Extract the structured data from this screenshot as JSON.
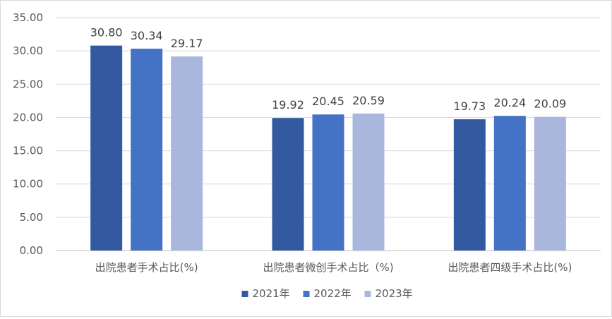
{
  "chart_data": {
    "type": "bar",
    "title": "",
    "xlabel": "",
    "ylabel": "",
    "categories": [
      "出院患者手术占比(%)",
      "出院患者微创手术占比（%)",
      "出院患者四级手术占比(%)"
    ],
    "series": [
      {
        "name": "2021年",
        "values": [
          30.8,
          19.92,
          19.73
        ],
        "color": "#335aa1"
      },
      {
        "name": "2022年",
        "values": [
          30.34,
          20.45,
          20.24
        ],
        "color": "#4472c4"
      },
      {
        "name": "2023年",
        "values": [
          29.17,
          20.59,
          20.09
        ],
        "color": "#a9b7dc"
      }
    ],
    "ylim": [
      0,
      35
    ],
    "yticks": [
      "0.00",
      "5.00",
      "10.00",
      "15.00",
      "20.00",
      "25.00",
      "30.00",
      "35.00"
    ],
    "data_labels": [
      [
        "30.80",
        "19.92",
        "19.73"
      ],
      [
        "30.34",
        "20.45",
        "20.24"
      ],
      [
        "29.17",
        "20.59",
        "20.09"
      ]
    ],
    "grid": true,
    "legend_position": "bottom"
  }
}
